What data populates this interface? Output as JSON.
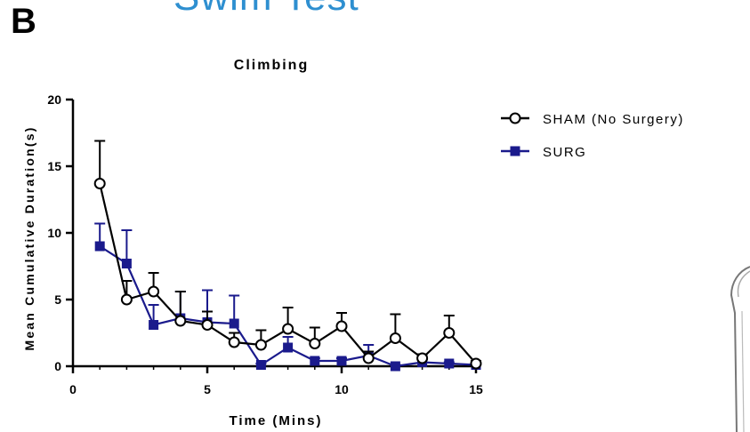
{
  "header": {
    "top_title": "Swim Test",
    "panel_letter": "B"
  },
  "colors": {
    "sham": "#000000",
    "surg": "#1a1a8c",
    "title_blue": "#2e8fd0"
  },
  "chart_data": {
    "type": "line",
    "title": "Climbing",
    "xlabel": "Time (Mins)",
    "ylabel": "Mean Cumulative Duration(s)",
    "xlim": [
      0,
      15
    ],
    "ylim": [
      0,
      20
    ],
    "xticks": [
      0,
      5,
      10,
      15
    ],
    "yticks": [
      0,
      5,
      10,
      15,
      20
    ],
    "x": [
      1,
      2,
      3,
      4,
      5,
      6,
      7,
      8,
      9,
      10,
      11,
      12,
      13,
      14,
      15
    ],
    "legend_position": "top-right-outside",
    "series": [
      {
        "name": "SHAM (No Surgery)",
        "marker": "open-circle",
        "values": [
          13.7,
          5.0,
          5.6,
          3.4,
          3.1,
          1.8,
          1.6,
          2.8,
          1.7,
          3.0,
          0.6,
          2.1,
          0.6,
          2.5,
          0.2
        ],
        "error": [
          3.2,
          1.4,
          1.4,
          2.2,
          1.0,
          0.7,
          1.1,
          1.6,
          1.2,
          1.0,
          0.5,
          1.8,
          0.3,
          1.3,
          0.2
        ]
      },
      {
        "name": "SURG",
        "marker": "filled-square",
        "values": [
          9.0,
          7.7,
          3.1,
          3.6,
          3.3,
          3.2,
          0.1,
          1.4,
          0.4,
          0.4,
          0.8,
          0.0,
          0.3,
          0.2,
          0.1
        ],
        "error": [
          1.7,
          2.5,
          1.5,
          2.0,
          2.4,
          2.1,
          0.1,
          0.8,
          0.2,
          0.2,
          0.8,
          0.1,
          0.2,
          0.1,
          0.1
        ]
      }
    ]
  }
}
